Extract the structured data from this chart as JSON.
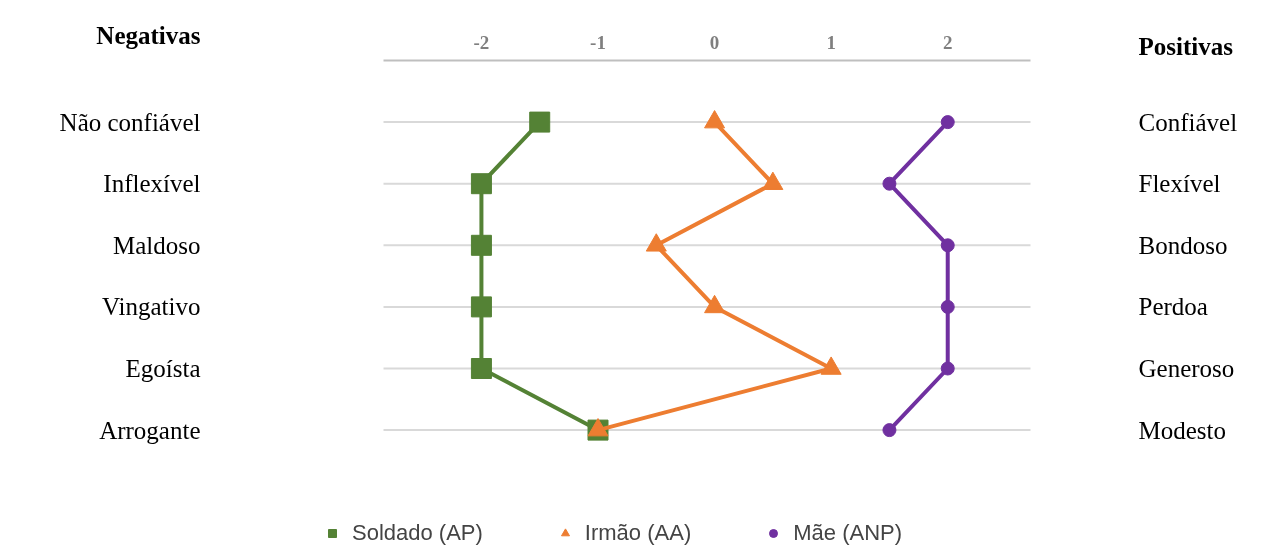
{
  "chart_data": {
    "type": "line",
    "orientation": "horizontal",
    "ylabel": "Negativas",
    "y2label": "Positivas",
    "categories": [
      "Não confiável",
      "Inflexível",
      "Maldoso",
      "Vingativo",
      "Egoísta",
      "Arrogante"
    ],
    "y2_categories": [
      "Confiável",
      "Flexível",
      "Bondoso",
      "Perdoa",
      "Generoso",
      "Modesto"
    ],
    "series": [
      {
        "name": "Soldado (AP)",
        "color": "#548235",
        "marker": "square",
        "values": [
          -1.5,
          -2,
          -2,
          -2,
          -2,
          -1
        ]
      },
      {
        "name": "Irmão (AA)",
        "color": "#ed7d31",
        "marker": "triangle",
        "values": [
          0,
          0.5,
          -0.5,
          0,
          1,
          -1
        ]
      },
      {
        "name": "Mãe (ANP)",
        "color": "#7030a0",
        "marker": "circle",
        "values": [
          2,
          1.5,
          2,
          2,
          2,
          1.5
        ]
      }
    ],
    "xlim": [
      -2.84,
      2.71
    ],
    "xticks": [
      -2,
      -1,
      0,
      1,
      2
    ],
    "grid": "y",
    "legend": "bottom"
  }
}
